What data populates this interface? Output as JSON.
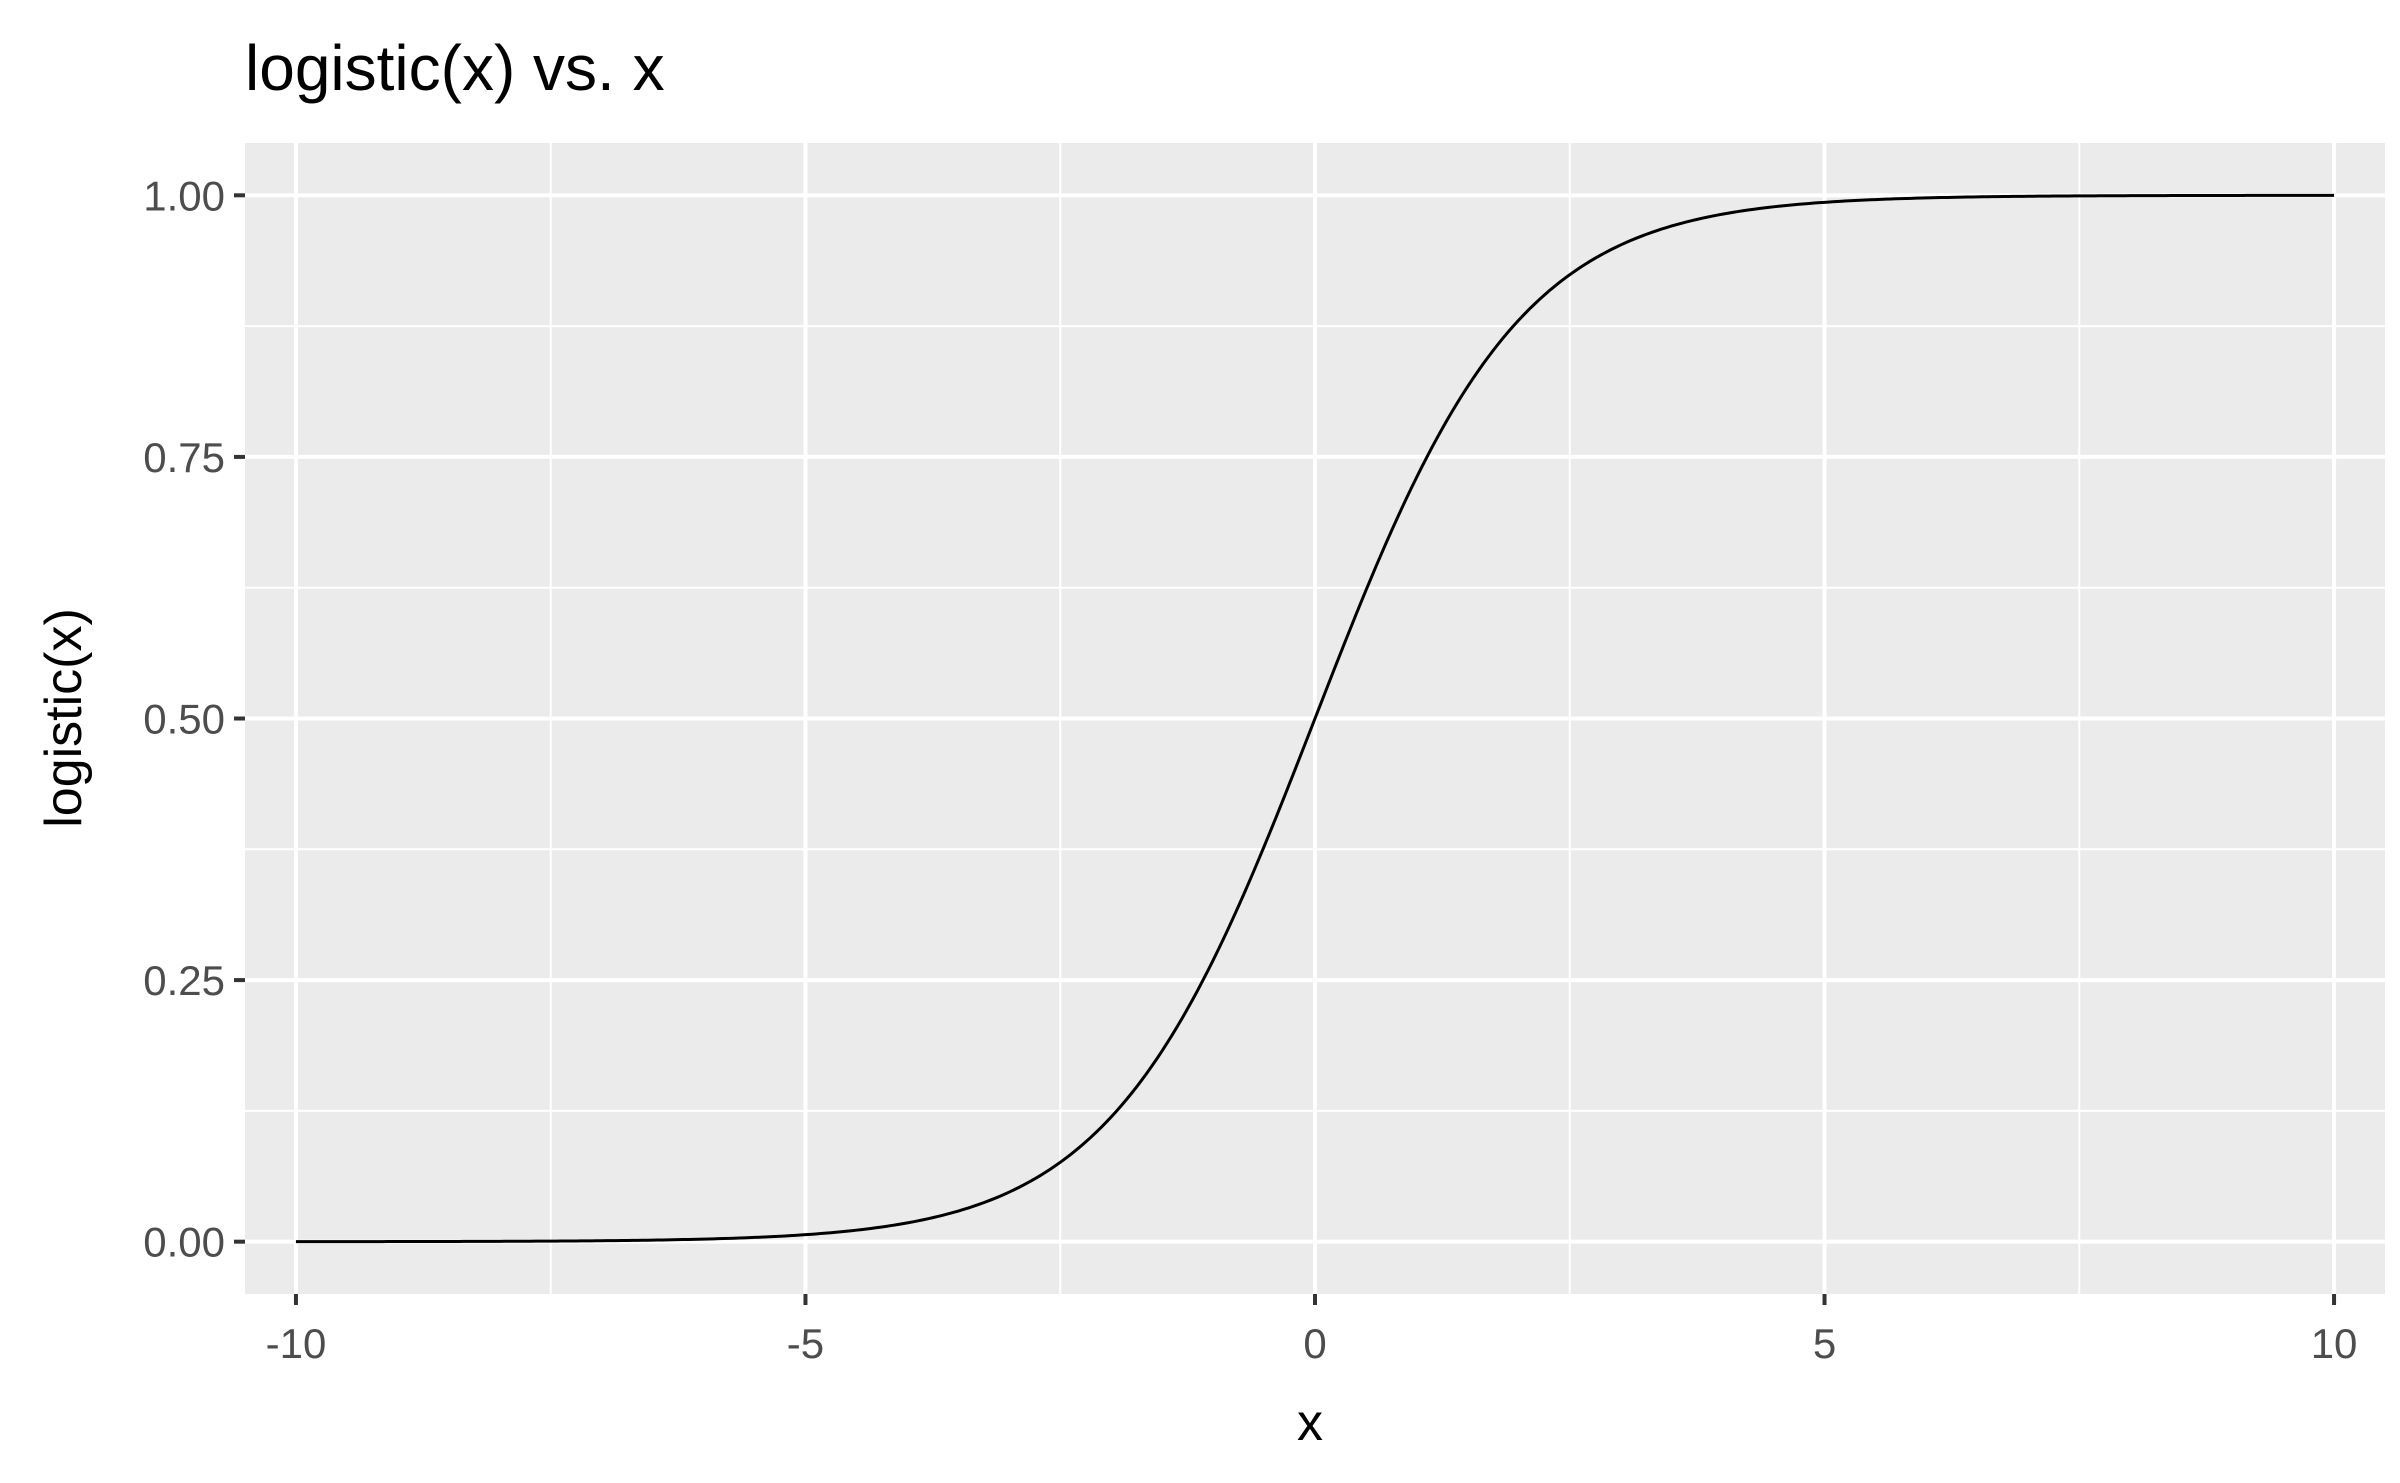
{
  "chart_data": {
    "type": "line",
    "title": "logistic(x) vs. x",
    "xlabel": "x",
    "ylabel": "logistic(x)",
    "xlim": [
      -10.5,
      10.5
    ],
    "ylim": [
      -0.05,
      1.05
    ],
    "x_ticks": [
      -10,
      -5,
      0,
      5,
      10
    ],
    "x_tick_labels": [
      "-10",
      "-5",
      "0",
      "5",
      "10"
    ],
    "x_minor_ticks": [
      -7.5,
      -2.5,
      2.5,
      7.5
    ],
    "y_ticks": [
      0,
      0.25,
      0.5,
      0.75,
      1
    ],
    "y_tick_labels": [
      "0.00",
      "0.25",
      "0.50",
      "0.75",
      "1.00"
    ],
    "y_minor_ticks": [
      0.125,
      0.375,
      0.625,
      0.875
    ],
    "grid": true,
    "legend": "none",
    "colors": {
      "panel_background": "#ebebeb",
      "grid": "#ffffff",
      "line": "#000000",
      "tick": "#333333"
    },
    "series": [
      {
        "x": [
          -10,
          -9,
          -8,
          -7,
          -6,
          -5,
          -4.5,
          -4,
          -3.5,
          -3,
          -2.5,
          -2,
          -1.75,
          -1.5,
          -1.25,
          -1,
          -0.75,
          -0.5,
          -0.25,
          0,
          0.25,
          0.5,
          0.75,
          1,
          1.25,
          1.5,
          1.75,
          2,
          2.5,
          3,
          3.5,
          4,
          4.5,
          5,
          6,
          7,
          8,
          9,
          10
        ],
        "values": [
          4.54e-05,
          0.0001234,
          0.0003354,
          0.0009111,
          0.0024726,
          0.0066929,
          0.0109869,
          0.0179862,
          0.0293122,
          0.0474259,
          0.0758582,
          0.1192029,
          0.1480472,
          0.1824255,
          0.2227001,
          0.2689414,
          0.3208213,
          0.3775407,
          0.4378235,
          0.5,
          0.5621765,
          0.6224593,
          0.6791787,
          0.7310586,
          0.7772999,
          0.8175745,
          0.8519528,
          0.8807971,
          0.9241418,
          0.9525741,
          0.9706878,
          0.9820138,
          0.9890131,
          0.9933071,
          0.9975274,
          0.9990889,
          0.9996646,
          0.9998766,
          0.9999546
        ]
      }
    ]
  }
}
